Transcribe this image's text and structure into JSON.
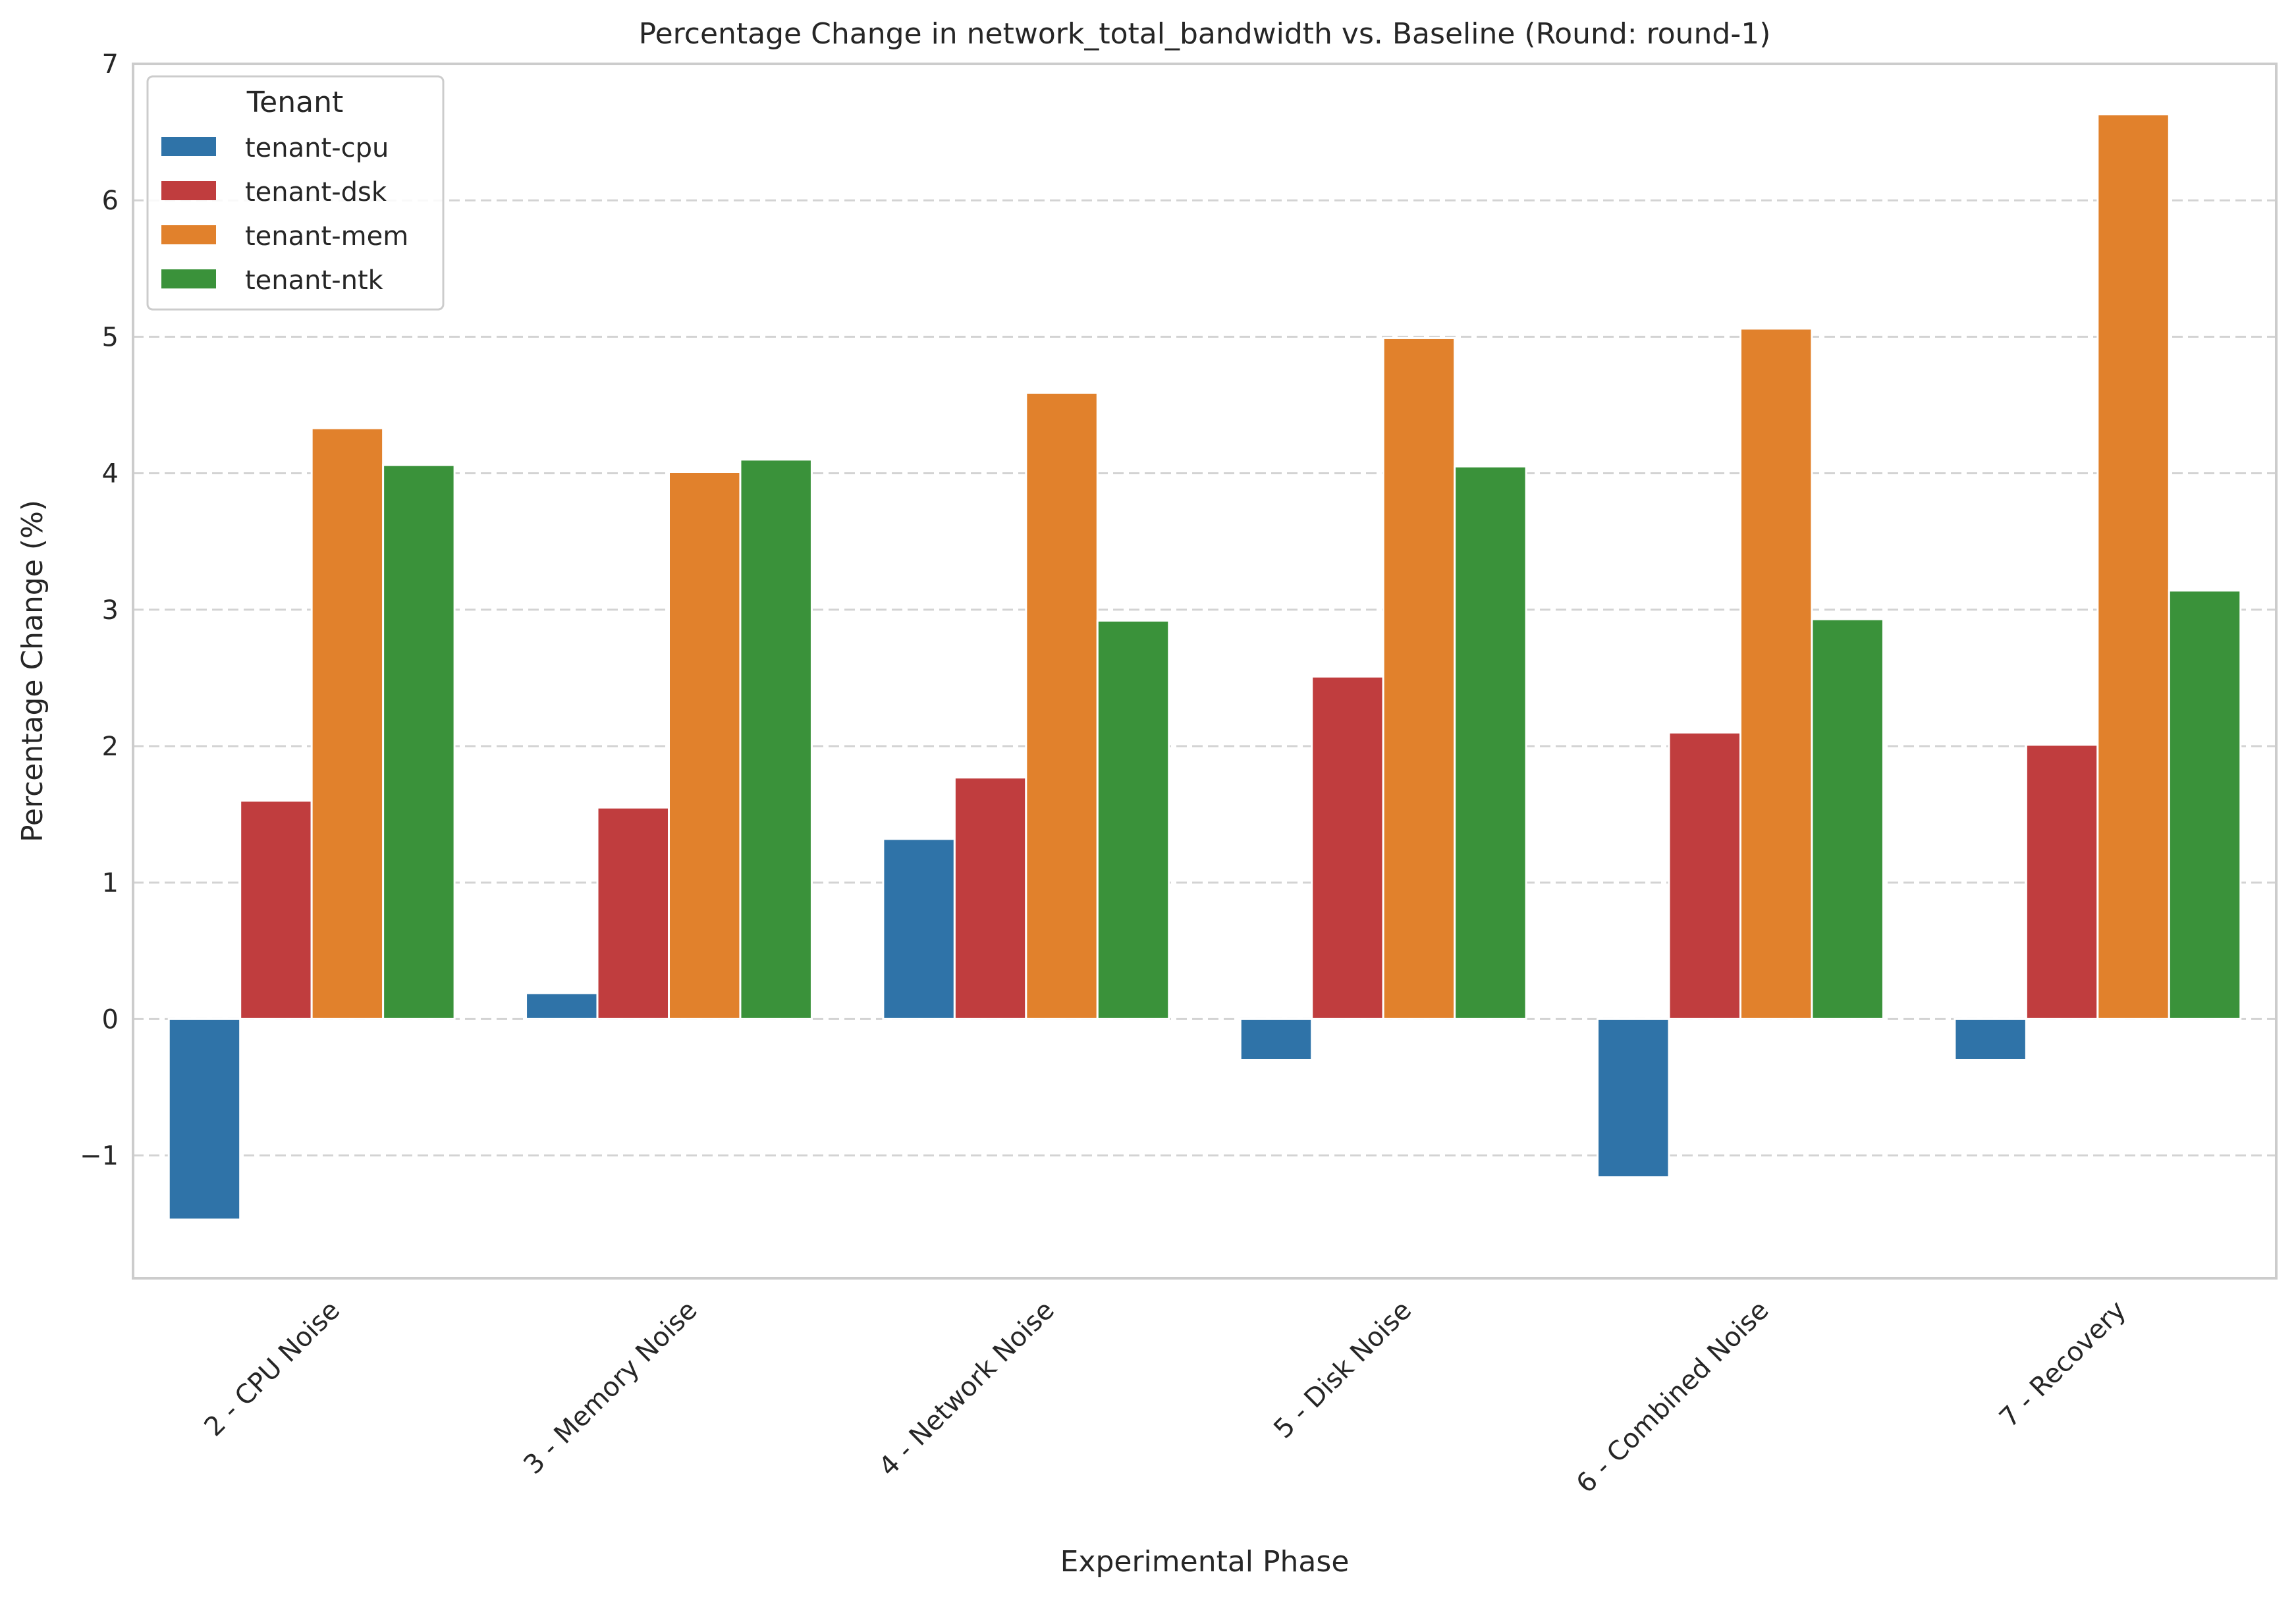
{
  "chart_data": {
    "type": "bar",
    "title": "Percentage Change in network_total_bandwidth vs. Baseline (Round: round-1)",
    "xlabel": "Experimental Phase",
    "ylabel": "Percentage Change (%)",
    "categories": [
      "2 - CPU Noise",
      "3 - Memory Noise",
      "4 - Network Noise",
      "5 - Disk Noise",
      "6 - Combined Noise",
      "7 - Recovery"
    ],
    "ylim": [
      -1.9,
      7.0
    ],
    "yticks": [
      -1,
      0,
      1,
      2,
      3,
      4,
      5,
      6,
      7
    ],
    "ytick_labels": [
      "−1",
      "0",
      "1",
      "2",
      "3",
      "4",
      "5",
      "6",
      "7"
    ],
    "grid": true,
    "legend": {
      "title": "Tenant",
      "placement": "top-left"
    },
    "series": [
      {
        "name": "tenant-cpu",
        "color": "#2f73a8",
        "values": [
          -1.47,
          0.19,
          1.32,
          -0.3,
          -1.16,
          -0.3
        ]
      },
      {
        "name": "tenant-dsk",
        "color": "#c03d3e",
        "values": [
          1.6,
          1.55,
          1.77,
          2.51,
          2.1,
          2.01
        ]
      },
      {
        "name": "tenant-mem",
        "color": "#e1812c",
        "values": [
          4.33,
          4.01,
          4.59,
          4.99,
          5.06,
          6.63
        ]
      },
      {
        "name": "tenant-ntk",
        "color": "#3a923a",
        "values": [
          4.06,
          4.1,
          2.92,
          4.05,
          2.93,
          3.14
        ]
      }
    ]
  }
}
